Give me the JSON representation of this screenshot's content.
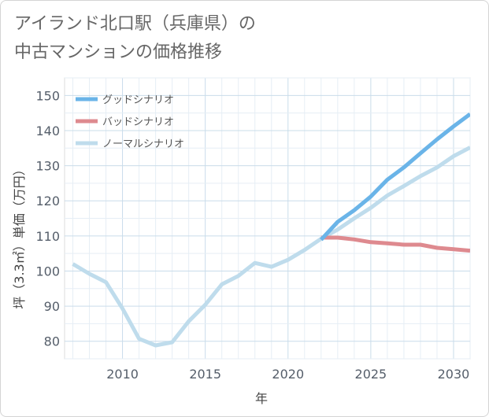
{
  "title_line1": "アイランド北口駅（兵庫県）の",
  "title_line2": "中古マンションの価格推移",
  "chart_data": {
    "type": "line",
    "title": "アイランド北口駅（兵庫県）の中古マンションの価格推移",
    "xlabel": "年",
    "ylabel": "坪（3.3㎡）単価（万円）",
    "xlim": [
      2006.5,
      2031
    ],
    "ylim": [
      75,
      155
    ],
    "xticks": [
      2010,
      2015,
      2020,
      2025,
      2030
    ],
    "yticks": [
      80,
      90,
      100,
      110,
      120,
      130,
      140,
      150
    ],
    "legend_position": "top-left",
    "series": [
      {
        "name": "グッドシナリオ",
        "color": "#6ab4e8",
        "x": [
          2022,
          2023,
          2024,
          2025,
          2026,
          2027,
          2028,
          2029,
          2030,
          2031
        ],
        "values": [
          108.9,
          114.0,
          117.3,
          121.2,
          126.0,
          129.5,
          133.5,
          137.5,
          141.2,
          144.7
        ]
      },
      {
        "name": "バッドシナリオ",
        "color": "#de8a8f",
        "x": [
          2022,
          2023,
          2024,
          2025,
          2026,
          2027,
          2028,
          2029,
          2030,
          2031
        ],
        "values": [
          109.5,
          109.5,
          109.0,
          108.2,
          107.9,
          107.5,
          107.5,
          106.6,
          106.2,
          105.8
        ]
      },
      {
        "name": "ノーマルシナリオ",
        "color": "#bfdcec",
        "x": [
          2007,
          2008,
          2009,
          2010,
          2011,
          2012,
          2013,
          2014,
          2015,
          2016,
          2017,
          2018,
          2019,
          2020,
          2021,
          2022,
          2023,
          2024,
          2025,
          2026,
          2027,
          2028,
          2029,
          2030,
          2031
        ],
        "values": [
          102.0,
          99.2,
          96.8,
          89.3,
          80.7,
          78.8,
          79.7,
          85.7,
          90.4,
          96.2,
          98.6,
          102.3,
          101.2,
          103.2,
          106.0,
          109.2,
          111.8,
          115.0,
          118.0,
          121.5,
          124.2,
          127.0,
          129.5,
          132.7,
          135.2
        ]
      }
    ]
  }
}
